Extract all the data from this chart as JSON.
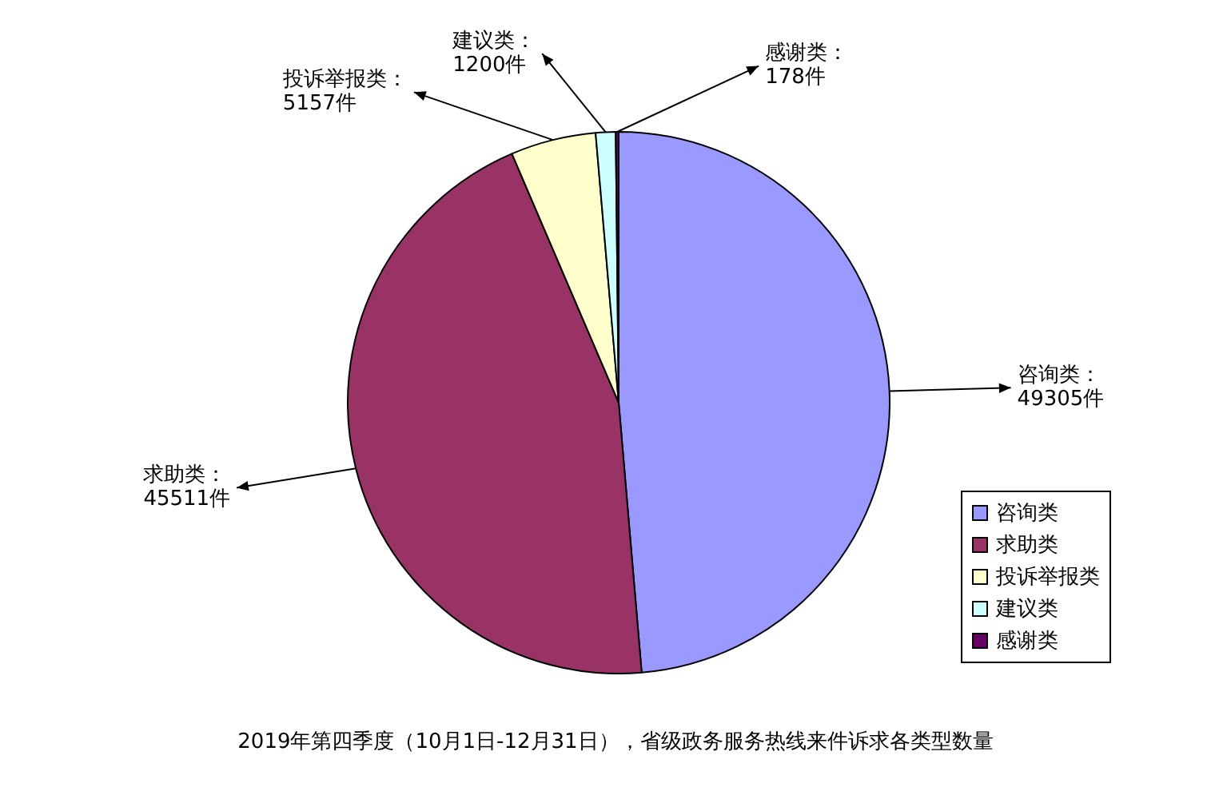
{
  "chart_data": {
    "type": "pie",
    "title": "2019年第四季度（10月1日-12月31日），省级政务服务热线来件诉求各类型数量",
    "categories": [
      "咨询类",
      "求助类",
      "投诉举报类",
      "建议类",
      "感谢类"
    ],
    "values": [
      49305,
      45511,
      5157,
      1200,
      178
    ],
    "colors": [
      "#9999ff",
      "#993366",
      "#ffffcc",
      "#ccffff",
      "#660066"
    ],
    "value_labels": [
      "咨询类：\n49305件",
      "求助类：\n45511件",
      "投诉举报类：\n5157件",
      "建议类：\n1200件",
      "感谢类：\n178件"
    ],
    "legend": "bottom right"
  }
}
